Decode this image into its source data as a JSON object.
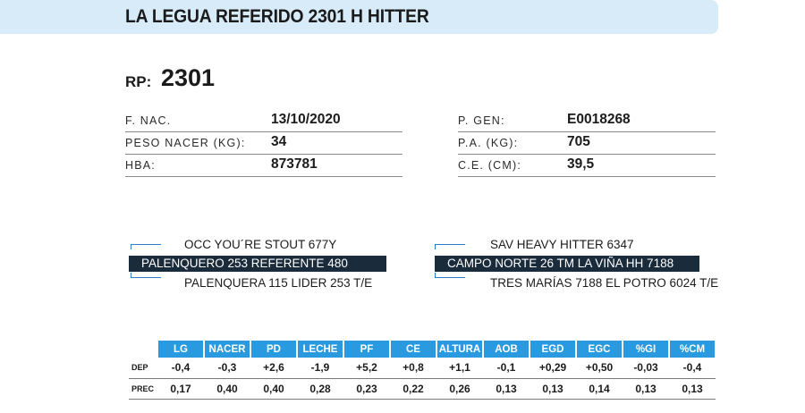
{
  "header": {
    "title": "LA LEGUA REFERIDO 2301 H HITTER"
  },
  "rp": {
    "label": "RP:",
    "value": "2301"
  },
  "info_left": [
    {
      "label": "F. NAC.",
      "value": "13/10/2020"
    },
    {
      "label": "PESO NACER (KG):",
      "value": "34"
    },
    {
      "label": "HBA:",
      "value": "873781"
    }
  ],
  "info_right": [
    {
      "label": "P. GEN:",
      "value": "E0018268"
    },
    {
      "label": "P.A. (KG):",
      "value": "705"
    },
    {
      "label": "C.E. (CM):",
      "value": "39,5"
    }
  ],
  "pedigree": {
    "sire": {
      "top": "OCC YOU´RE STOUT 677Y",
      "main": "PALENQUERO 253 REFERENTE 480",
      "bottom": "PALENQUERA 115 LIDER 253 T/E"
    },
    "dam": {
      "top": "SAV HEAVY HITTER 6347",
      "main": "CAMPO NORTE 26 TM LA VIÑA HH 7188",
      "bottom": "TRES MARÍAS 7188 EL POTRO 6024 T/E"
    }
  },
  "dep_table": {
    "columns": [
      "LG",
      "NACER",
      "PD",
      "LECHE",
      "PF",
      "CE",
      "ALTURA",
      "AOB",
      "EGD",
      "EGC",
      "%GI",
      "%CM"
    ],
    "rows": [
      {
        "label": "DEP",
        "values": [
          "-0,4",
          "-0,3",
          "+2,6",
          "-1,9",
          "+5,2",
          "+0,8",
          "+1,1",
          "-0,1",
          "+0,29",
          "+0,50",
          "-0,03",
          "-0,4"
        ]
      },
      {
        "label": "PREC",
        "values": [
          "0,17",
          "0,40",
          "0,40",
          "0,28",
          "0,23",
          "0,22",
          "0,26",
          "0,13",
          "0,13",
          "0,14",
          "0,13",
          "0,13"
        ]
      }
    ]
  }
}
